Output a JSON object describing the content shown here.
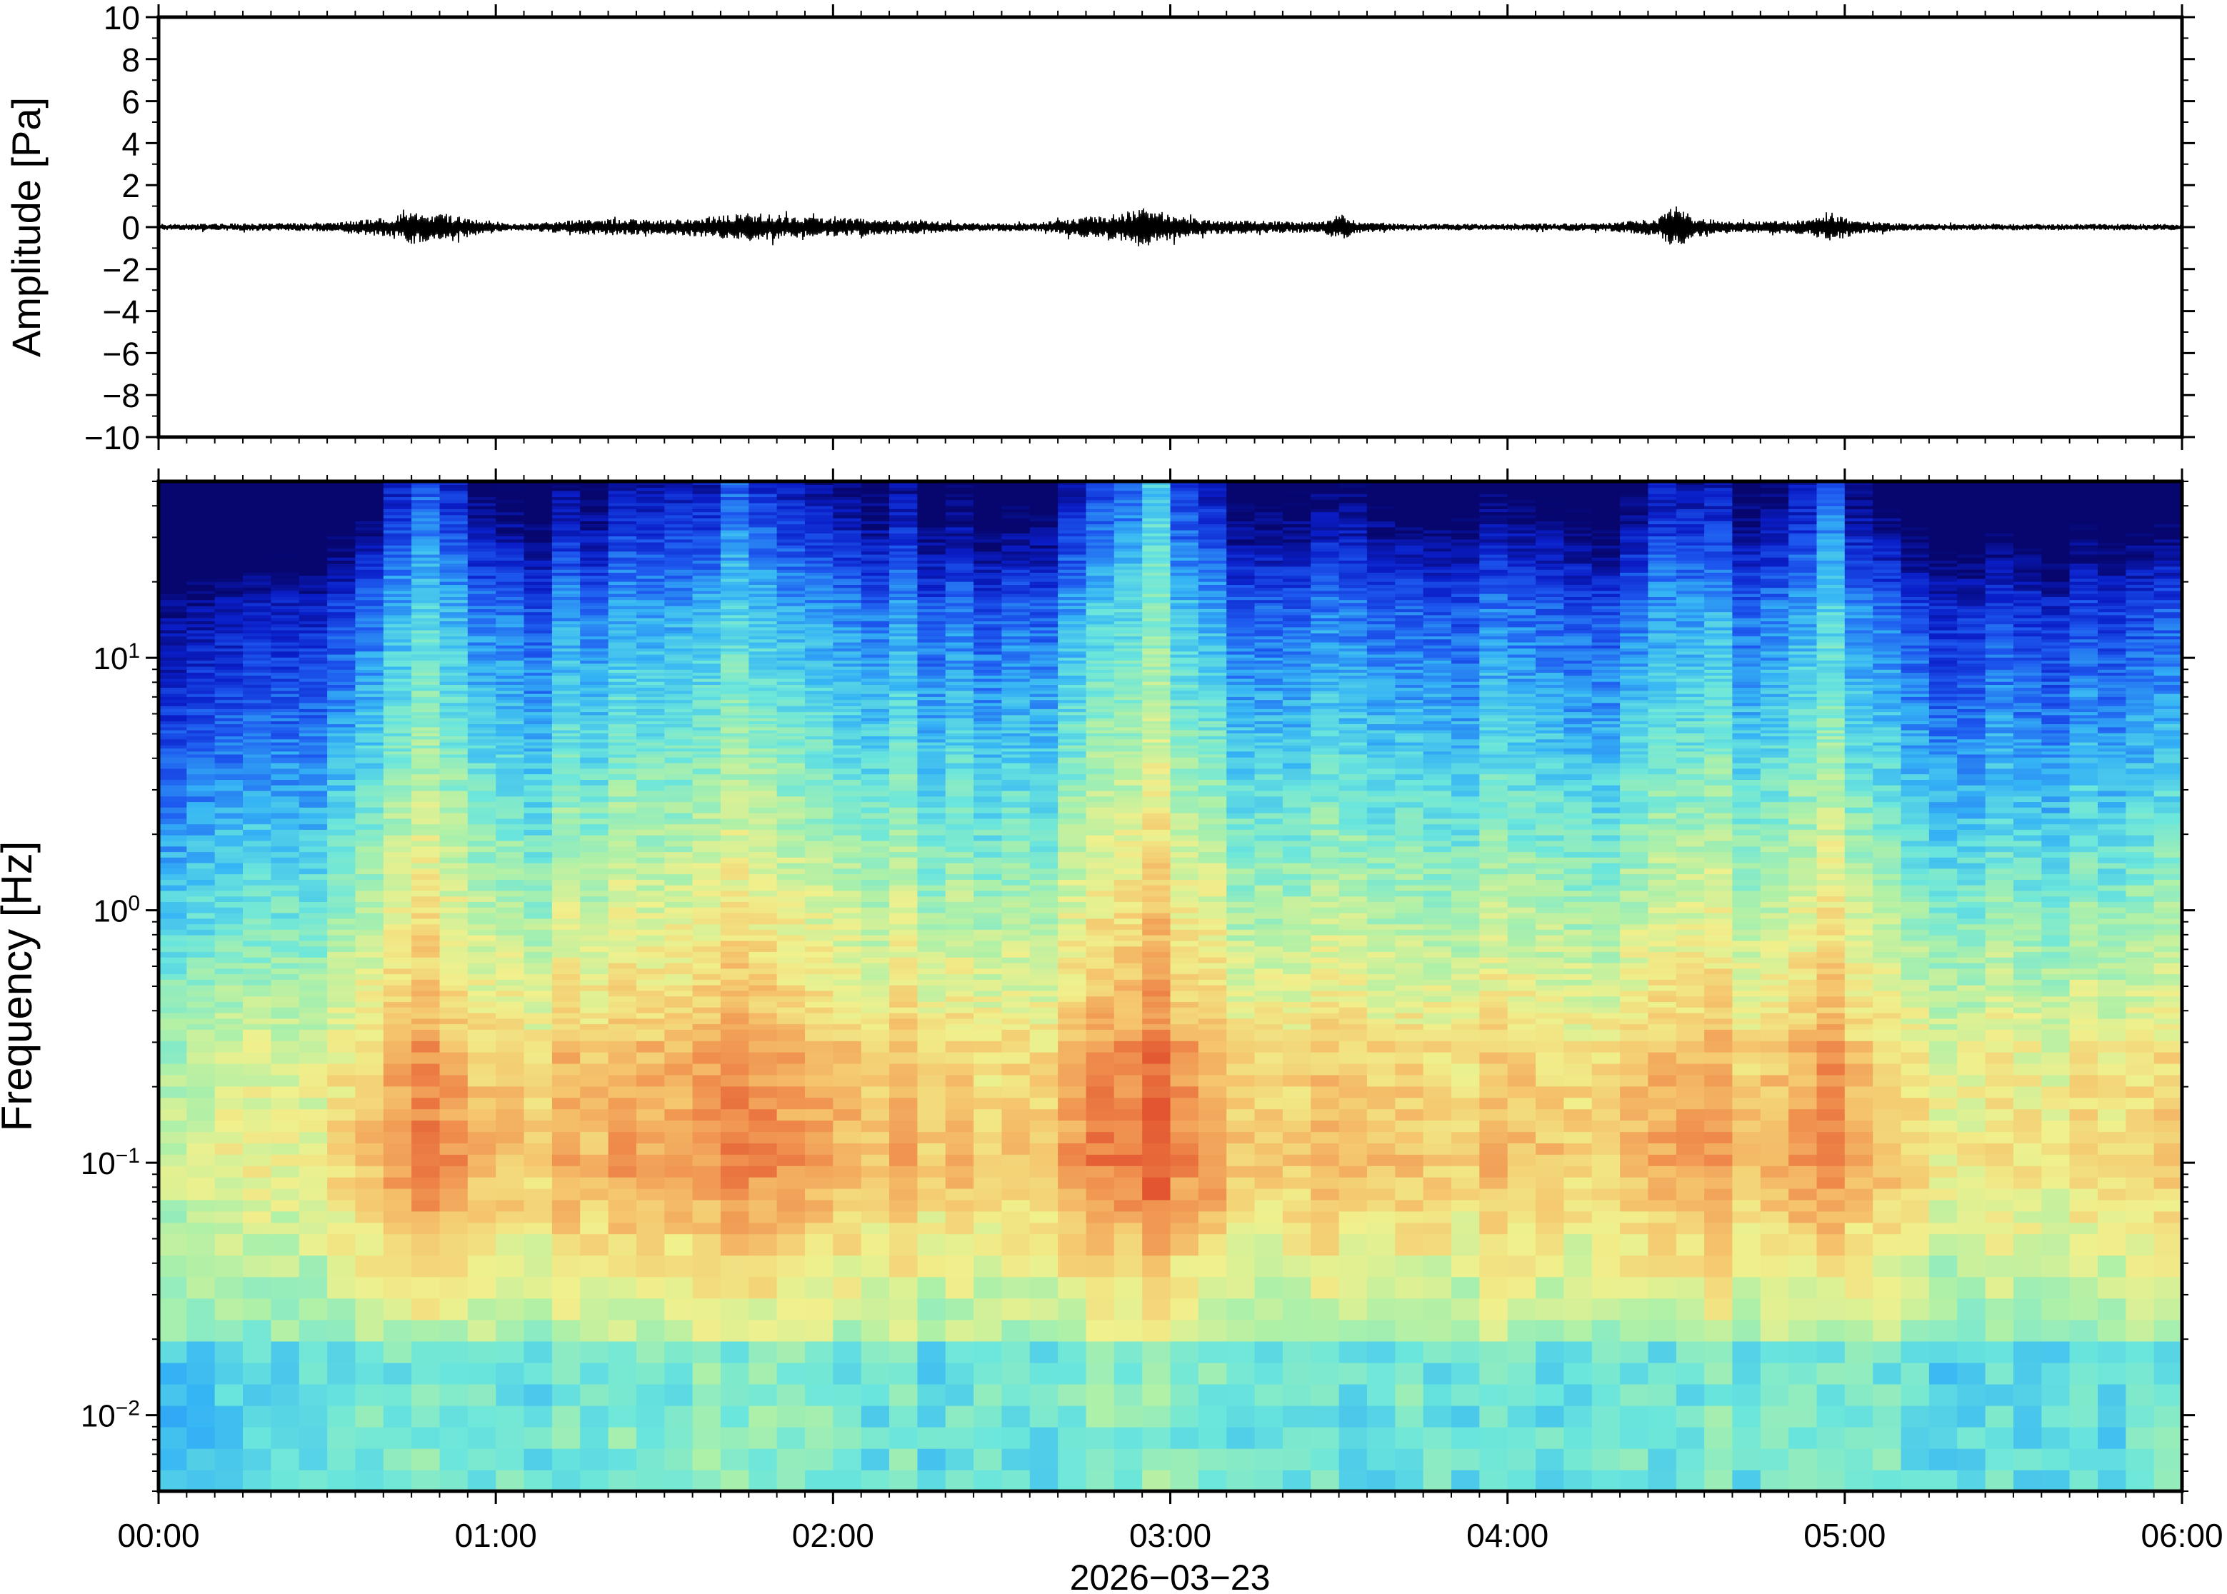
{
  "chart_data": [
    {
      "type": "line",
      "panel": "waveform",
      "ylabel": "Amplitude [Pa]",
      "ylim": [
        -10,
        10
      ],
      "yticks": [
        10,
        8,
        6,
        4,
        2,
        0,
        -2,
        -4,
        -6,
        -8,
        -10
      ],
      "ytick_labels": [
        "10",
        "8",
        "6",
        "4",
        "2",
        "0",
        "−2",
        "−4",
        "−6",
        "−8",
        "−10"
      ],
      "x_unit": "hours since 00:00",
      "xlim": [
        0,
        6
      ],
      "grid": false,
      "line_color": "#000000",
      "envelope": {
        "x": [
          0.0,
          0.5,
          0.7,
          0.75,
          0.85,
          0.95,
          1.05,
          1.2,
          1.3,
          1.5,
          1.7,
          1.75,
          1.85,
          2.0,
          2.2,
          2.4,
          2.6,
          2.7,
          2.85,
          2.92,
          3.0,
          3.1,
          3.3,
          3.45,
          3.5,
          3.55,
          3.7,
          4.0,
          4.3,
          4.45,
          4.5,
          4.55,
          4.7,
          4.9,
          4.95,
          5.05,
          5.2,
          5.5,
          6.0
        ],
        "values": [
          0.15,
          0.2,
          0.5,
          0.8,
          0.6,
          0.4,
          0.15,
          0.3,
          0.4,
          0.35,
          0.6,
          0.7,
          0.55,
          0.45,
          0.35,
          0.2,
          0.2,
          0.4,
          0.7,
          1.0,
          0.6,
          0.35,
          0.3,
          0.25,
          0.7,
          0.3,
          0.15,
          0.15,
          0.2,
          0.45,
          1.1,
          0.5,
          0.25,
          0.35,
          0.75,
          0.3,
          0.15,
          0.15,
          0.15
        ]
      }
    },
    {
      "type": "heatmap",
      "panel": "spectrogram",
      "ylabel": "Frequency [Hz]",
      "y_scale": "log",
      "ylim": [
        0.005,
        50
      ],
      "yticks": [
        0.01,
        0.1,
        1,
        10
      ],
      "ytick_labels": [
        {
          "base": "10",
          "exp": "−2"
        },
        {
          "base": "10",
          "exp": "−1"
        },
        {
          "base": "10",
          "exp": "0"
        },
        {
          "base": "10",
          "exp": "1"
        }
      ],
      "xlabel": "2026−03−23",
      "xticks": [
        0,
        1,
        2,
        3,
        4,
        5,
        6
      ],
      "xtick_labels": [
        "00:00",
        "01:00",
        "02:00",
        "03:00",
        "04:00",
        "05:00",
        "06:00"
      ],
      "xlim": [
        0,
        6
      ],
      "colormap": [
        "#06066e",
        "#0a1ec8",
        "#1e5af0",
        "#35b4f5",
        "#6be6dc",
        "#aef0a8",
        "#f0f08c",
        "#f5c66e",
        "#f0904e",
        "#e25530"
      ],
      "event_activity": {
        "x": [
          0.0,
          0.4,
          0.6,
          0.7,
          0.8,
          0.95,
          1.05,
          1.15,
          1.3,
          1.5,
          1.7,
          1.8,
          1.9,
          2.1,
          2.3,
          2.5,
          2.65,
          2.8,
          2.9,
          2.95,
          3.05,
          3.2,
          3.35,
          3.45,
          3.5,
          3.55,
          3.7,
          3.85,
          4.0,
          4.2,
          4.35,
          4.45,
          4.5,
          4.55,
          4.7,
          4.85,
          4.95,
          5.05,
          5.2,
          5.4,
          5.6,
          6.0
        ],
        "values": [
          0.05,
          0.15,
          0.3,
          0.65,
          0.75,
          0.6,
          0.35,
          0.45,
          0.5,
          0.55,
          0.75,
          0.7,
          0.6,
          0.5,
          0.45,
          0.35,
          0.4,
          0.7,
          0.95,
          1.0,
          0.7,
          0.5,
          0.4,
          0.45,
          0.8,
          0.45,
          0.3,
          0.35,
          0.35,
          0.35,
          0.45,
          0.6,
          0.95,
          0.65,
          0.45,
          0.55,
          0.8,
          0.55,
          0.35,
          0.25,
          0.2,
          0.25
        ]
      }
    }
  ]
}
